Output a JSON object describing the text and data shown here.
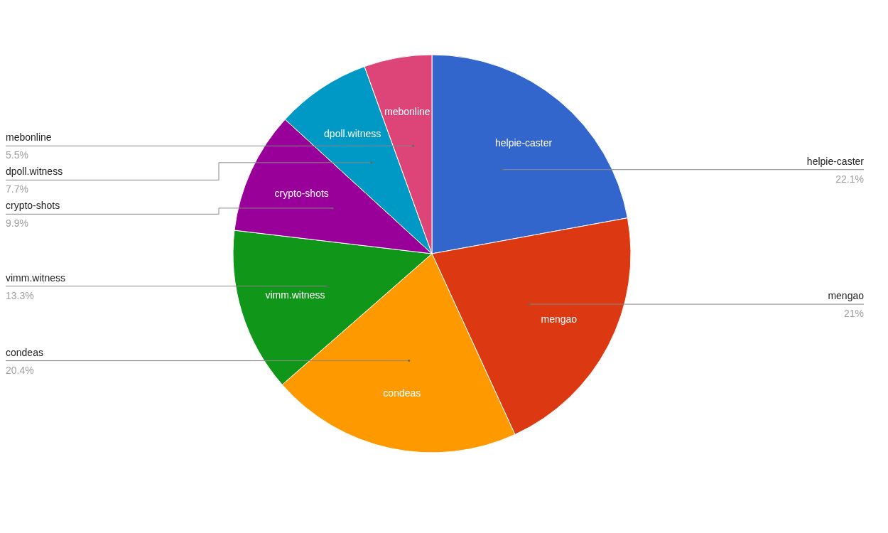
{
  "chart_data": {
    "type": "pie",
    "categories": [
      "helpie-caster",
      "mengao",
      "condeas",
      "vimm.witness",
      "crypto-shots",
      "dpoll.witness",
      "mebonline"
    ],
    "values": [
      22.1,
      21,
      20.4,
      13.3,
      9.9,
      7.7,
      5.5
    ],
    "colors": [
      "#3366cc",
      "#dc3912",
      "#ff9900",
      "#109618",
      "#990099",
      "#0099c6",
      "#dd4477"
    ],
    "value_labels": [
      "22.1%",
      "21%",
      "20.4%",
      "13.3%",
      "9.9%",
      "7.7%",
      "5.5%"
    ]
  }
}
